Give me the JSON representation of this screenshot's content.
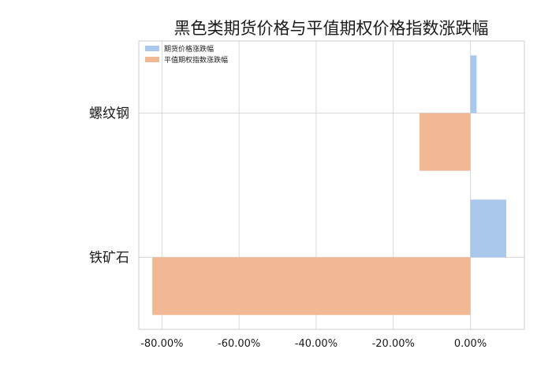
{
  "chart_data": {
    "type": "bar",
    "orientation": "horizontal",
    "title": "黑色类期货价格与平值期权价格指数涨跌幅",
    "xlabel": "",
    "ylabel": "",
    "categories": [
      "螺纹钢",
      "铁矿石"
    ],
    "series": [
      {
        "name": "期货价格涨跌幅",
        "values": [
          1.6,
          9.3
        ],
        "color": "#a9c8ec"
      },
      {
        "name": "平值期权指数涨跌幅",
        "values": [
          -13.2,
          -82.5
        ],
        "color": "#f0b893"
      }
    ],
    "xlim": [
      -86.0,
      14.0
    ],
    "xticks": [
      -80,
      -60,
      -40,
      -20,
      0
    ],
    "xtick_labels": [
      "-80.00%",
      "-60.00%",
      "-40.00%",
      "-20.00%",
      "0.00%"
    ],
    "grid": true,
    "legend_position": "top-left"
  }
}
